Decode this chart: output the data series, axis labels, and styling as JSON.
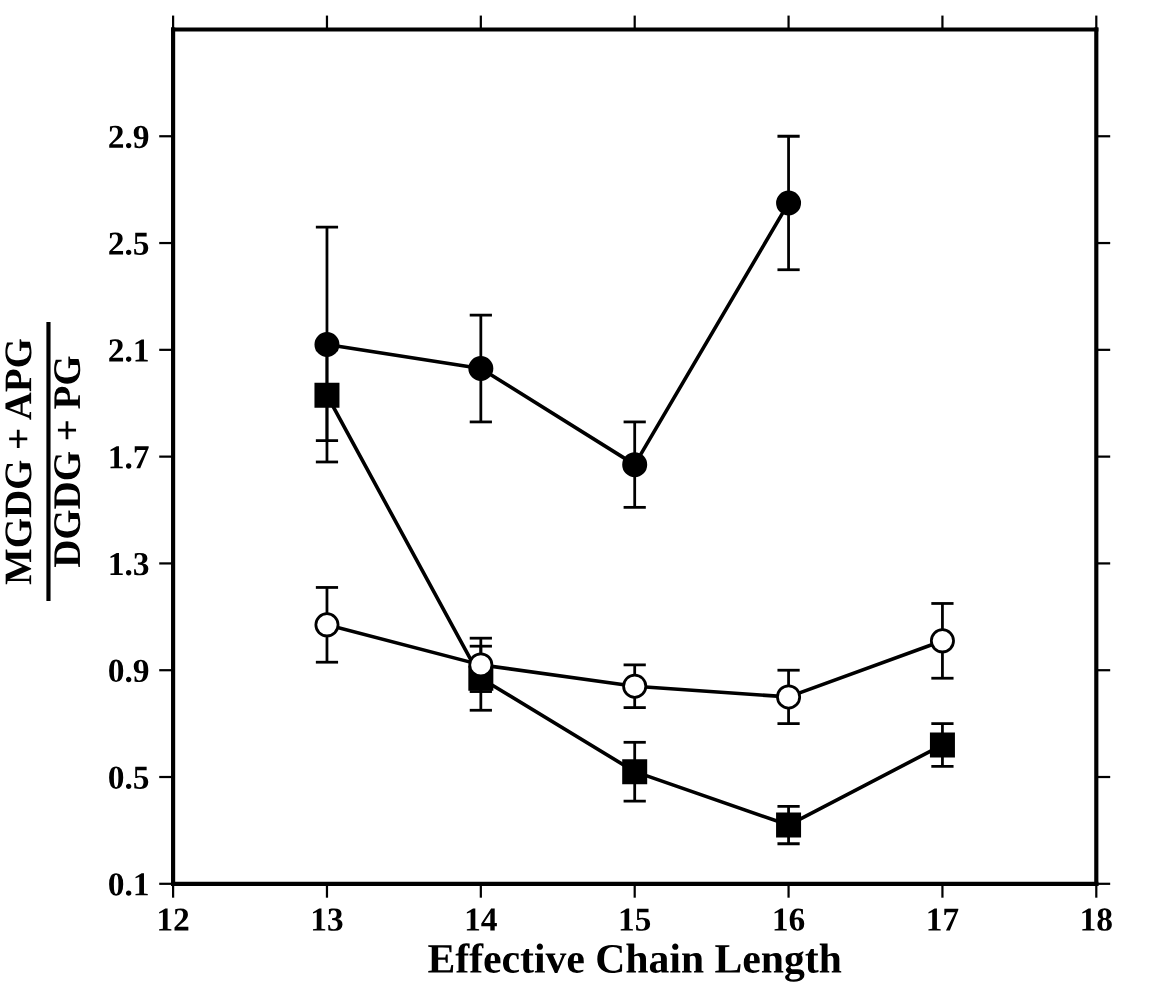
{
  "chart_data": {
    "type": "line",
    "xlabel": "Effective Chain Length",
    "ylabel": "MGDG + APG\nDGDG + PG",
    "xlim": [
      12,
      18
    ],
    "xticks": [
      12,
      13,
      14,
      15,
      16,
      17,
      18
    ],
    "ylim": [
      0.1,
      3.3
    ],
    "yticks": [
      0.1,
      0.5,
      0.9,
      1.3,
      1.7,
      2.1,
      2.5,
      2.9
    ],
    "grid": false,
    "legend": false,
    "series": [
      {
        "color": "#000000",
        "marker": "circle",
        "x": [
          13,
          14,
          15,
          16
        ],
        "values": [
          2.12,
          2.03,
          1.67,
          2.65
        ],
        "errors": [
          0.44,
          0.2,
          0.16,
          0.25
        ]
      },
      {
        "color": "#000000",
        "marker": "square",
        "x": [
          13,
          14,
          15,
          16,
          17
        ],
        "values": [
          1.93,
          0.87,
          0.52,
          0.32,
          0.62
        ],
        "errors": [
          0.17,
          0.12,
          0.11,
          0.07,
          0.08
        ]
      },
      {
        "color": "#ffffff",
        "marker": "circle",
        "x": [
          13,
          14,
          15,
          16,
          17
        ],
        "values": [
          1.07,
          0.92,
          0.84,
          0.8,
          1.01
        ],
        "errors": [
          0.14,
          0.1,
          0.08,
          0.1,
          0.14
        ]
      }
    ]
  }
}
